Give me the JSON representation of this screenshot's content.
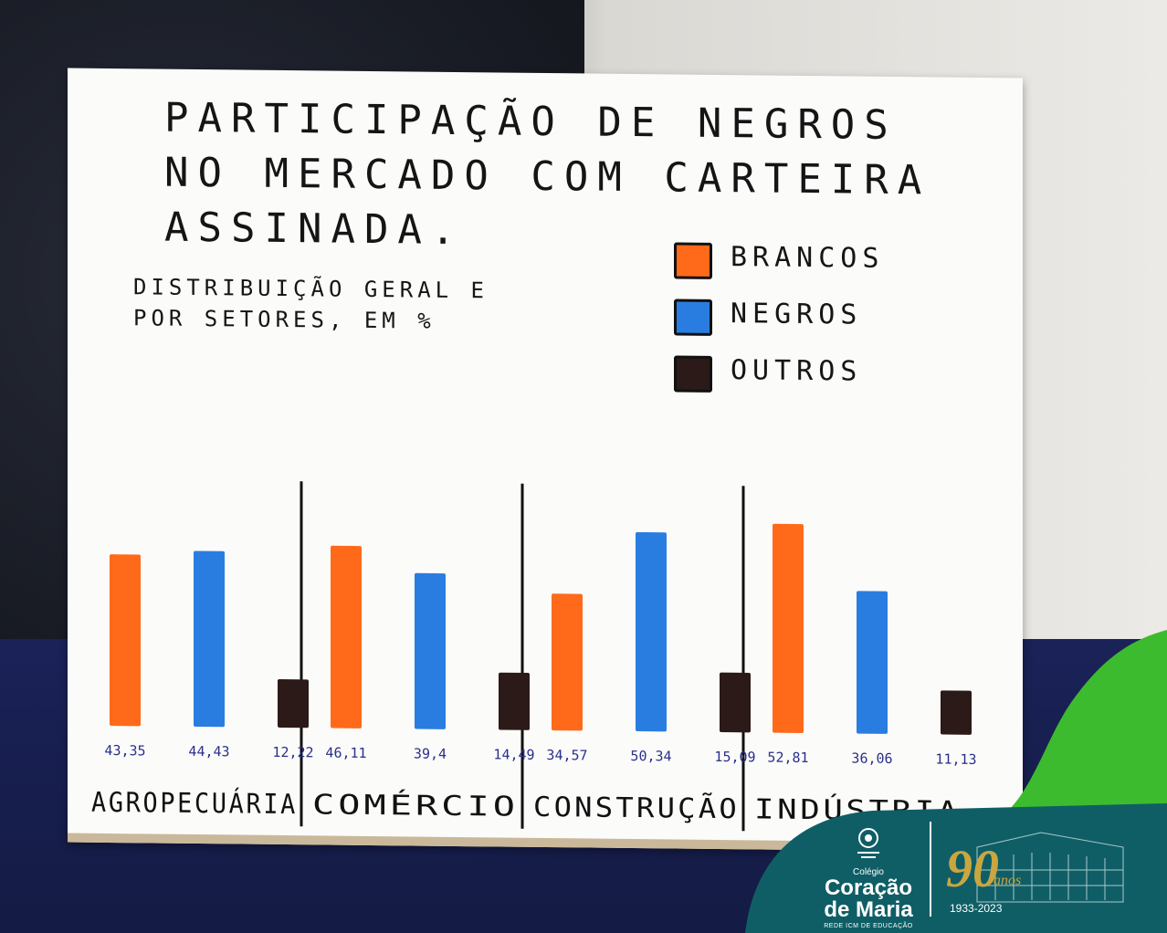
{
  "title": "PARTICIPAÇÃO DE NEGROS NO MERCADO COM CARTEIRA ASSINADA.",
  "subtitle": "DISTRIBUIÇÃO GERAL E POR SETORES, EM %",
  "legend": [
    {
      "label": "BRANCOS",
      "color": "#ff6a1a"
    },
    {
      "label": "NEGROS",
      "color": "#2a7de0"
    },
    {
      "label": "OUTROS",
      "color": "#2b1a17"
    }
  ],
  "chart_data": {
    "type": "bar",
    "title": "PARTICIPAÇÃO DE NEGROS NO MERCADO COM CARTEIRA ASSINADA.",
    "subtitle": "DISTRIBUIÇÃO GERAL E POR SETORES, EM %",
    "categories": [
      "AGROPECUÁRIA",
      "COMÉRCIO",
      "CONSTRUÇÃO",
      "INDÚSTRIA"
    ],
    "series": [
      {
        "name": "BRANCOS",
        "color": "#ff6a1a",
        "values": [
          43.35,
          46.11,
          34.57,
          52.81
        ],
        "labels": [
          "43,35",
          "46,11",
          "34,57",
          "52,81"
        ]
      },
      {
        "name": "NEGROS",
        "color": "#2a7de0",
        "values": [
          44.43,
          39.4,
          50.34,
          36.06
        ],
        "labels": [
          "44,43",
          "39,4",
          "50,34",
          "36,06"
        ]
      },
      {
        "name": "OUTROS",
        "color": "#2b1a17",
        "values": [
          12.22,
          14.49,
          15.09,
          11.13
        ],
        "labels": [
          "12,22",
          "14,49",
          "15,09",
          "11,13"
        ]
      }
    ],
    "ylim": [
      0,
      60
    ],
    "grid": false,
    "legend_position": "top-right"
  },
  "logo": {
    "colegio": "Colégio",
    "name_line1": "Coração",
    "name_line2": "de Maria",
    "network": "REDE ICM DE EDUCAÇÃO",
    "anniversary_number": "90",
    "anniversary_word": "anos",
    "years": "1933-2023",
    "panel_color": "#0f5e66",
    "wave_color": "#3dbb2e",
    "gold_color": "#c9a63f"
  }
}
